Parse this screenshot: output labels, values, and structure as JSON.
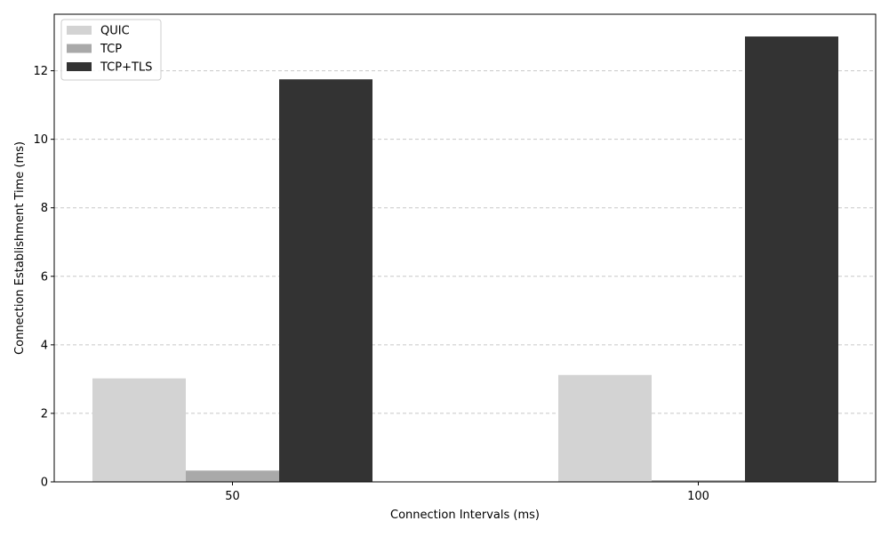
{
  "chart_data": {
    "type": "bar",
    "title": "",
    "xlabel": "Connection Intervals (ms)",
    "ylabel": "Connection Establishment Time (ms)",
    "categories": [
      "50",
      "100"
    ],
    "series": [
      {
        "name": "QUIC",
        "values": [
          3.02,
          3.12
        ],
        "color": "#d3d3d3"
      },
      {
        "name": "TCP",
        "values": [
          0.33,
          0.05
        ],
        "color": "#a9a9a9"
      },
      {
        "name": "TCP+TLS",
        "values": [
          11.75,
          13.0
        ],
        "color": "#333333"
      }
    ],
    "ylim": [
      0,
      13.65
    ],
    "yticks": [
      "0",
      "2",
      "4",
      "6",
      "8",
      "10",
      "12"
    ],
    "grid": "y-dashed",
    "legend_position": "top-left"
  }
}
